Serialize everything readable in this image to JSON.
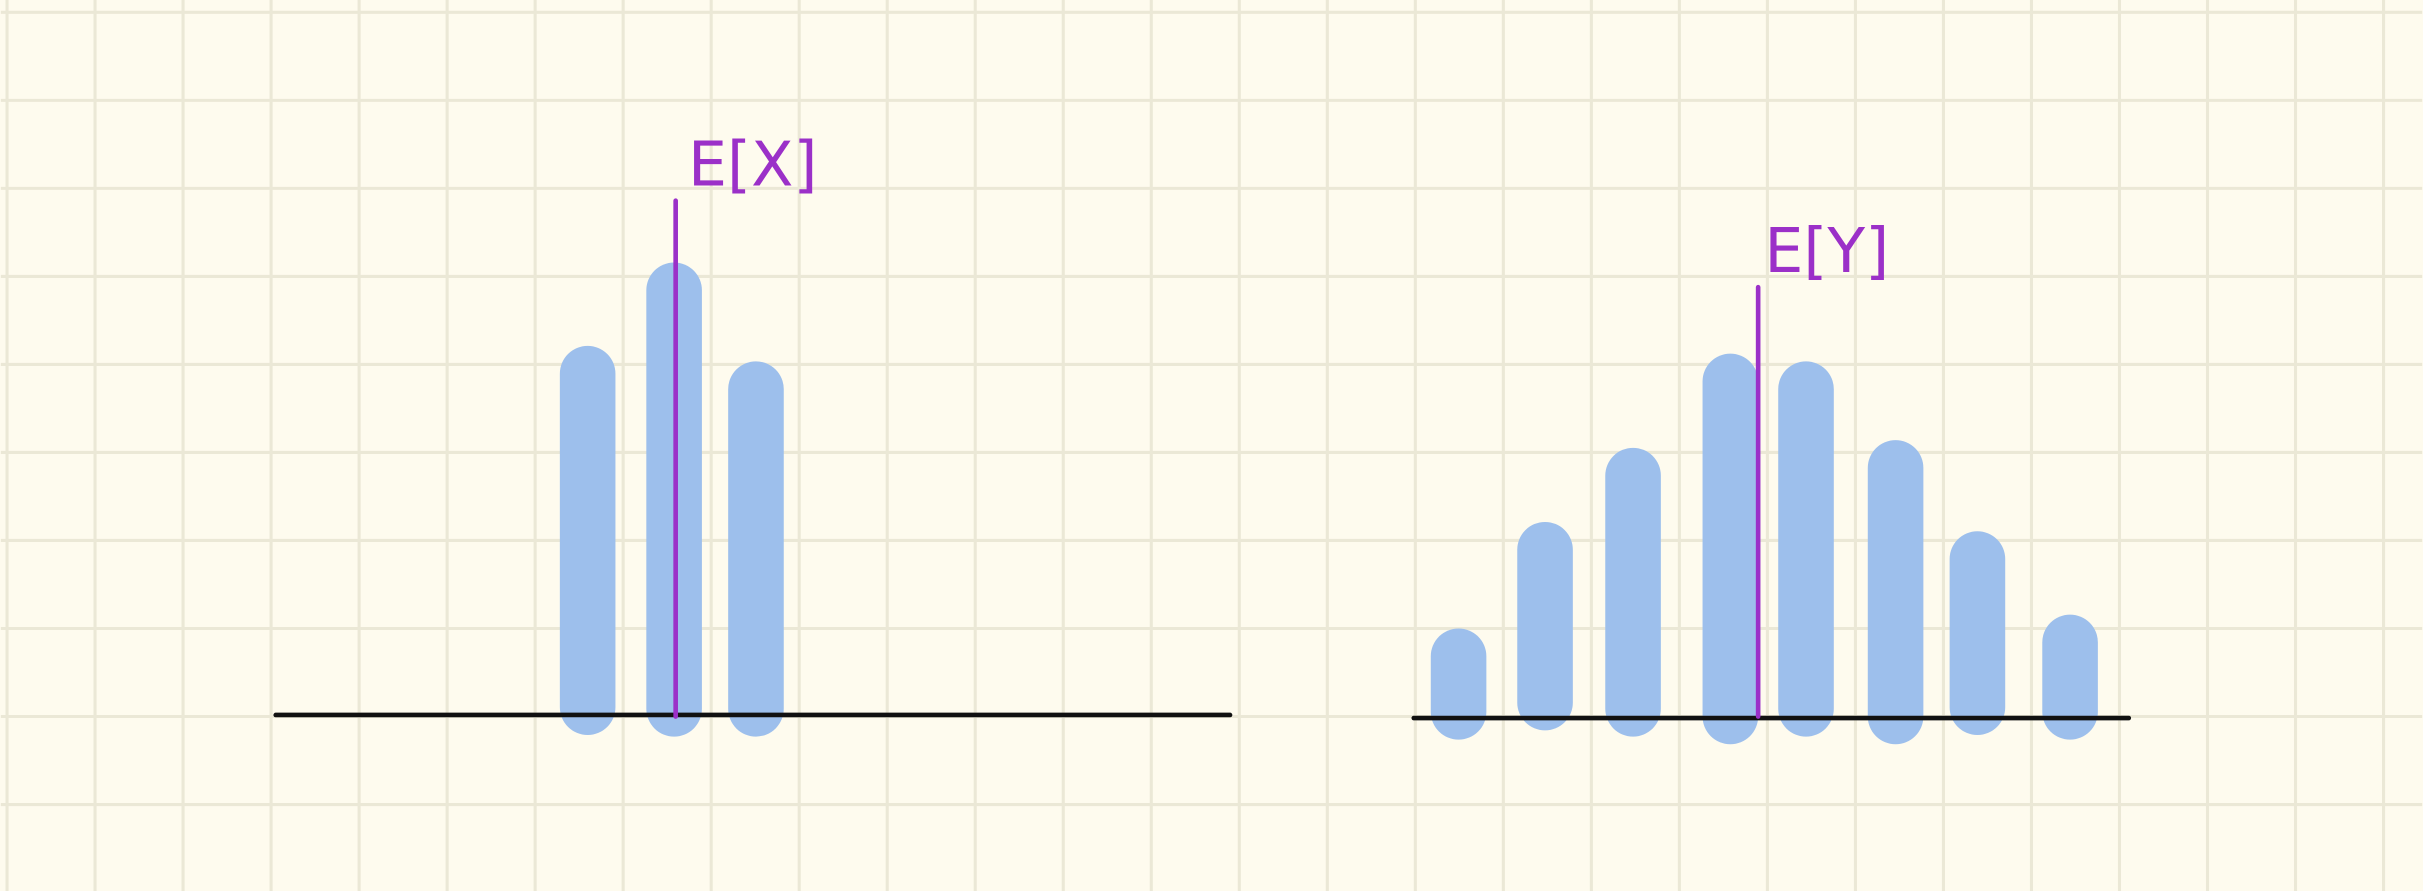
{
  "annotations": [
    "E[X]",
    "E[Y]"
  ]
}
